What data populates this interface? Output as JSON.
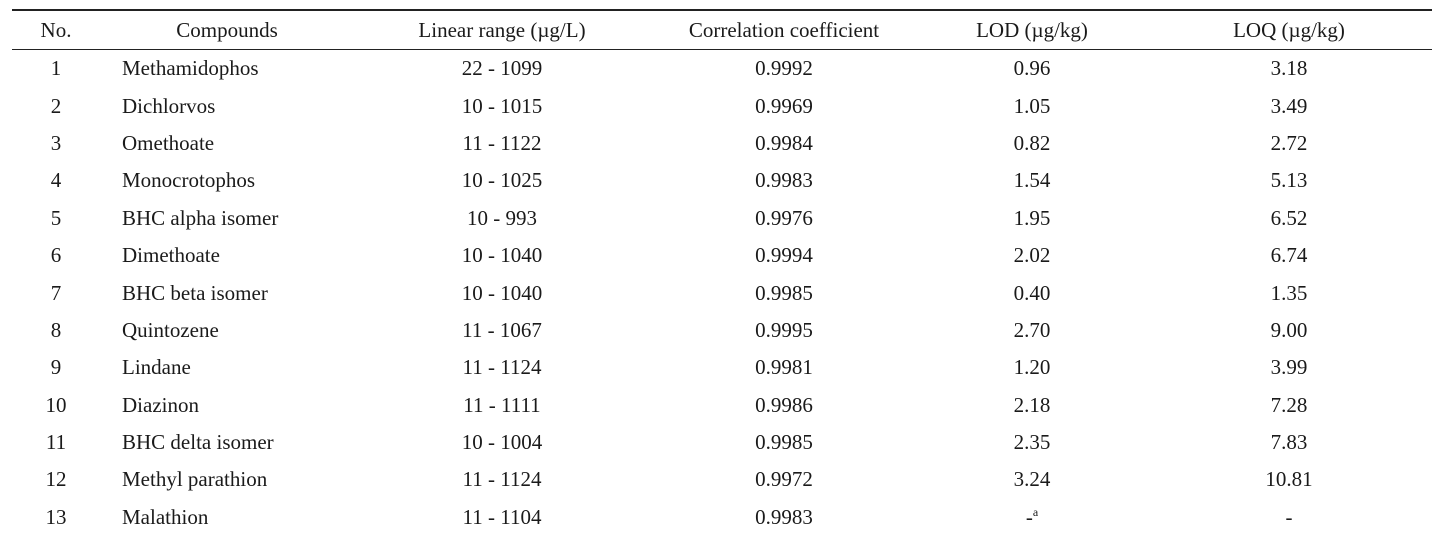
{
  "table": {
    "headers": {
      "no": "No.",
      "compounds": "Compounds",
      "linear_range": "Linear range (µg/L)",
      "correlation": "Correlation coefficient",
      "lod": "LOD (µg/kg)",
      "loq": "LOQ (µg/kg)"
    },
    "rows": [
      {
        "no": "1",
        "compound": "Methamidophos",
        "range": "22 - 1099",
        "corr": "0.9992",
        "lod": "0.96",
        "loq": "3.18"
      },
      {
        "no": "2",
        "compound": "Dichlorvos",
        "range": "10 - 1015",
        "corr": "0.9969",
        "lod": "1.05",
        "loq": "3.49"
      },
      {
        "no": "3",
        "compound": "Omethoate",
        "range": "11 - 1122",
        "corr": "0.9984",
        "lod": "0.82",
        "loq": "2.72"
      },
      {
        "no": "4",
        "compound": "Monocrotophos",
        "range": "10 - 1025",
        "corr": "0.9983",
        "lod": "1.54",
        "loq": "5.13"
      },
      {
        "no": "5",
        "compound": "BHC alpha isomer",
        "range": "10 - 993",
        "corr": "0.9976",
        "lod": "1.95",
        "loq": "6.52"
      },
      {
        "no": "6",
        "compound": "Dimethoate",
        "range": "10 - 1040",
        "corr": "0.9994",
        "lod": "2.02",
        "loq": "6.74"
      },
      {
        "no": "7",
        "compound": "BHC beta isomer",
        "range": "10 - 1040",
        "corr": "0.9985",
        "lod": "0.40",
        "loq": "1.35"
      },
      {
        "no": "8",
        "compound": "Quintozene",
        "range": "11 - 1067",
        "corr": "0.9995",
        "lod": "2.70",
        "loq": "9.00"
      },
      {
        "no": "9",
        "compound": "Lindane",
        "range": "11 - 1124",
        "corr": "0.9981",
        "lod": "1.20",
        "loq": "3.99"
      },
      {
        "no": "10",
        "compound": "Diazinon",
        "range": "11 - 1111",
        "corr": "0.9986",
        "lod": "2.18",
        "loq": "7.28"
      },
      {
        "no": "11",
        "compound": "BHC delta isomer",
        "range": "10 - 1004",
        "corr": "0.9985",
        "lod": "2.35",
        "loq": "7.83"
      },
      {
        "no": "12",
        "compound": "Methyl parathion",
        "range": "11 - 1124",
        "corr": "0.9972",
        "lod": "3.24",
        "loq": "10.81"
      },
      {
        "no": "13",
        "compound": "Malathion",
        "range": "11 - 1104",
        "corr": "0.9983",
        "lod": "-",
        "lod_sup": "a",
        "loq": "-"
      }
    ]
  }
}
